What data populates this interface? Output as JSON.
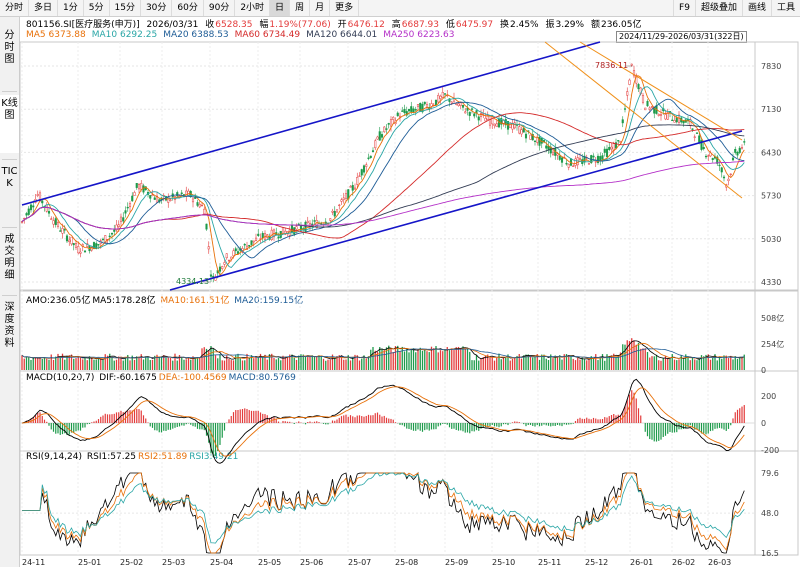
{
  "toolbar": {
    "buttons": [
      "分时",
      "多日",
      "1分",
      "5分",
      "15分",
      "30分",
      "60分",
      "90分",
      "2小时",
      "日",
      "周",
      "月",
      "更多"
    ],
    "active": "日",
    "right": [
      "F9",
      "超级叠加",
      "画线",
      "工具"
    ]
  },
  "sidebar": {
    "tabs": [
      "分时图",
      "K线图",
      "TICK",
      "成交明细",
      "深度资料"
    ],
    "active": "K线图"
  },
  "quote": {
    "code_name": "801156.SI[医疗服务(申万)]",
    "date": "2026/03/31",
    "close_label": "收",
    "close": "6528.35",
    "change_label": "幅",
    "change": "1.19%(77.06)",
    "open_label": "开",
    "open": "6476.12",
    "high_label": "高",
    "high": "6687.93",
    "low_label": "低",
    "low": "6475.97",
    "turnover_label": "换",
    "turnover": "2.45%",
    "amplitude_label": "振",
    "amplitude": "3.29%",
    "amount_label": "额",
    "amount": "236.05亿"
  },
  "ma": [
    {
      "text": "MA5 6373.88",
      "color": "#e8710a"
    },
    {
      "text": "MA10 6292.25",
      "color": "#2aa6a6"
    },
    {
      "text": "MA20 6388.53",
      "color": "#1e5c96"
    },
    {
      "text": "MA60 6734.49",
      "color": "#d42a2a"
    },
    {
      "text": "MA120 6644.01",
      "color": "#333d55"
    },
    {
      "text": "MA250 6223.63",
      "color": "#b430c8"
    }
  ],
  "range": "2024/11/29-2026/03/31(322日)",
  "price_annotations": {
    "high": "7836.11",
    "low": "4334.13"
  },
  "price_ticks": [
    "7830",
    "7130",
    "6430",
    "5730",
    "5030",
    "4330"
  ],
  "amo": {
    "title": "AMO:236.05亿",
    "ma5": "MA5:178.28亿",
    "ma10": "MA10:161.51亿",
    "ma20": "MA20:159.15亿",
    "ticks": [
      "508亿",
      "254亿",
      "0"
    ]
  },
  "macd": {
    "title": "MACD(10,20,7)",
    "dif": "DIF:-60.1675",
    "dea": "DEA:-100.4569",
    "macd": "MACD:80.5769",
    "ticks": [
      "200",
      "0",
      "-200"
    ]
  },
  "rsi": {
    "title": "RSI(9,14,24)",
    "rsi1": "RSI1:57.25",
    "rsi2": "RSI2:51.89",
    "rsi3": "RSI3:49.21",
    "ticks": [
      "79.6",
      "48.0",
      "16.5"
    ]
  },
  "x_ticks": [
    "24-11",
    "25-01",
    "25-02",
    "25-03",
    "25-04",
    "25-05",
    "25-06",
    "25-07",
    "25-08",
    "25-09",
    "25-10",
    "25-11",
    "25-12",
    "26-01",
    "26-02",
    "26-03"
  ],
  "colors": {
    "up": "#e33b3b",
    "down": "#1d9a4a",
    "channel": "#1515c8",
    "trend": "#f0901a",
    "ma5": "#e8710a",
    "ma10": "#2aa6a6",
    "ma20": "#1e5c96",
    "ma60": "#d42a2a",
    "ma120": "#333d55",
    "ma250": "#b430c8",
    "amo_ma5": "#000000",
    "amo_ma10": "#e8710a",
    "amo_ma20": "#1e5c96"
  }
}
